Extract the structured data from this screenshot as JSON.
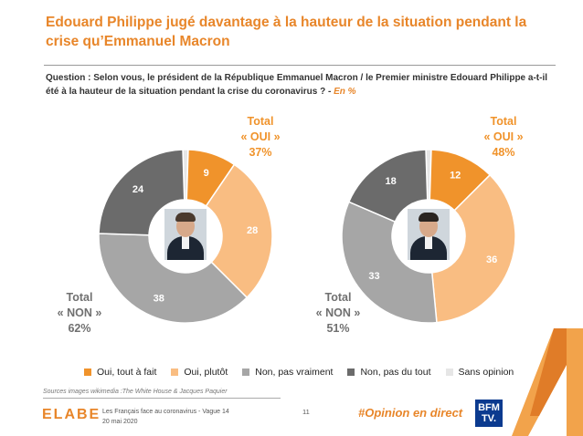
{
  "title": "Edouard Philippe jugé davantage à la hauteur de la situation pendant la crise qu’Emmanuel Macron",
  "question": {
    "text": "Question : Selon vous, le président de la République Emmanuel Macron / le Premier ministre Edouard Philippe a-t-il été à la hauteur de la situation pendant la crise du coronavirus ? -",
    "unit": "En %"
  },
  "colors": {
    "oui_tout_a_fait": "#f0932b",
    "oui_plutot": "#f9bd82",
    "non_pas_vraiment": "#a6a6a6",
    "non_pas_du_tout": "#6b6b6b",
    "sans_opinion": "#e6e6e6"
  },
  "chart_data": [
    {
      "type": "pie",
      "subject": "Emmanuel Macron",
      "categories": [
        "Oui, tout à fait",
        "Oui, plutôt",
        "Non, pas vraiment",
        "Non, pas du tout",
        "Sans opinion"
      ],
      "values": [
        9,
        28,
        38,
        24,
        1
      ],
      "total_oui": {
        "label": "Total",
        "name": "« OUI »",
        "value": "37%"
      },
      "total_non": {
        "label": "Total",
        "name": "« NON »",
        "value": "62%"
      }
    },
    {
      "type": "pie",
      "subject": "Edouard Philippe",
      "categories": [
        "Oui, tout à fait",
        "Oui, plutôt",
        "Non, pas vraiment",
        "Non, pas du tout",
        "Sans opinion"
      ],
      "values": [
        12,
        36,
        33,
        18,
        1
      ],
      "total_oui": {
        "label": "Total",
        "name": "« OUI »",
        "value": "48%"
      },
      "total_non": {
        "label": "Total",
        "name": "« NON »",
        "value": "51%"
      }
    }
  ],
  "legend": [
    "Oui, tout à fait",
    "Oui, plutôt",
    "Non, pas vraiment",
    "Non, pas du tout",
    "Sans opinion"
  ],
  "footer": {
    "source": "Sources images wikimedia :The White House  & Jacques Paquier",
    "logo": "ELABE",
    "line1": "Les Français face au coronavirus - Vague 14",
    "line2": "20 mai 2020",
    "page": "11",
    "hashtag": "#Opinion en direct",
    "bfm_line1": "BFM",
    "bfm_line2": "TV."
  }
}
